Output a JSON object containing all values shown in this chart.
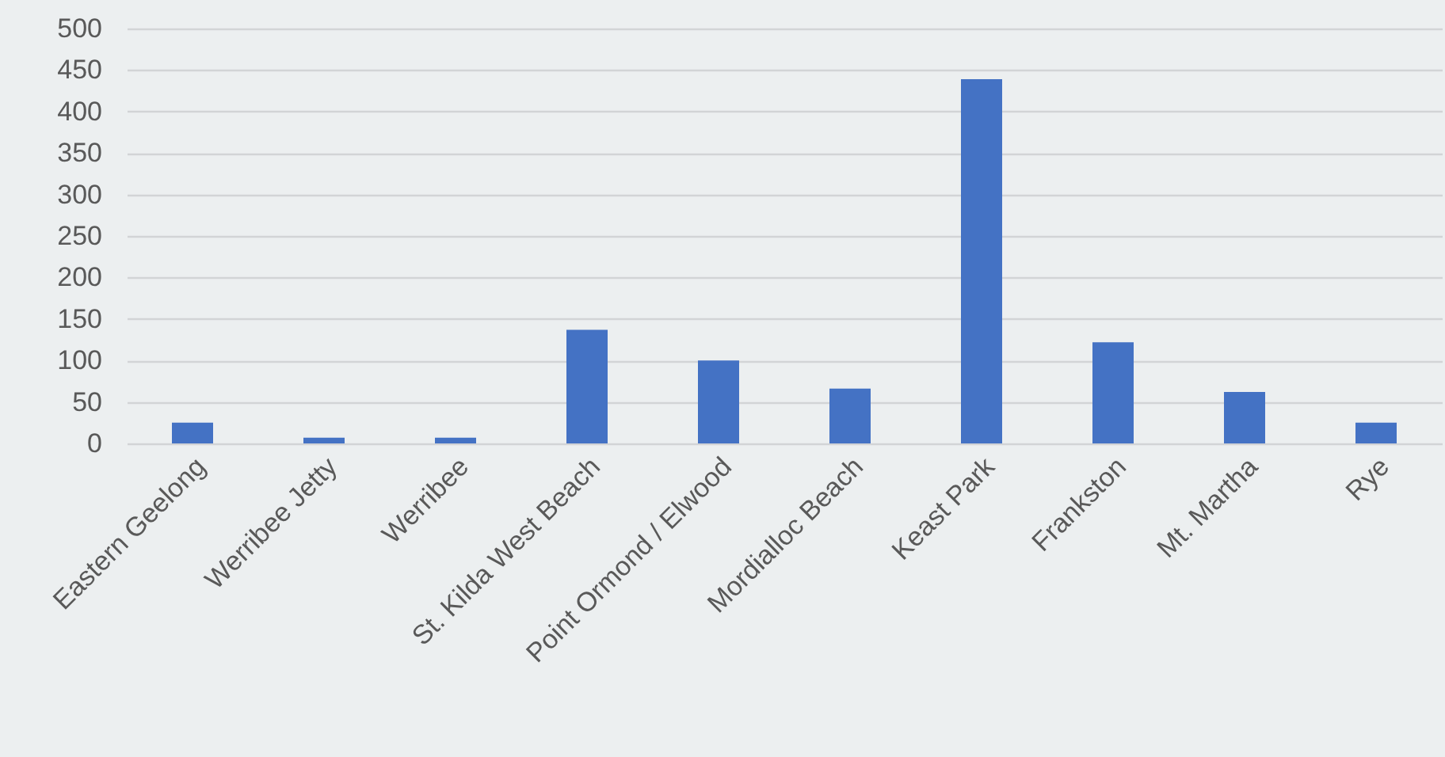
{
  "chart_data": {
    "type": "bar",
    "categories": [
      "Eastern Geelong",
      "Werribee Jetty",
      "Werribee",
      "St. Kilda West Beach",
      "Point Ormond / Elwood",
      "Mordialloc Beach",
      "Keast Park",
      "Frankston",
      "Mt. Martha",
      "Rye"
    ],
    "values": [
      25,
      7,
      7,
      137,
      100,
      66,
      439,
      122,
      62,
      25
    ],
    "color": "#4472c4",
    "ylim": [
      0,
      500
    ],
    "yticks": [
      0,
      50,
      100,
      150,
      200,
      250,
      300,
      350,
      400,
      450,
      500
    ],
    "grid": "y"
  }
}
